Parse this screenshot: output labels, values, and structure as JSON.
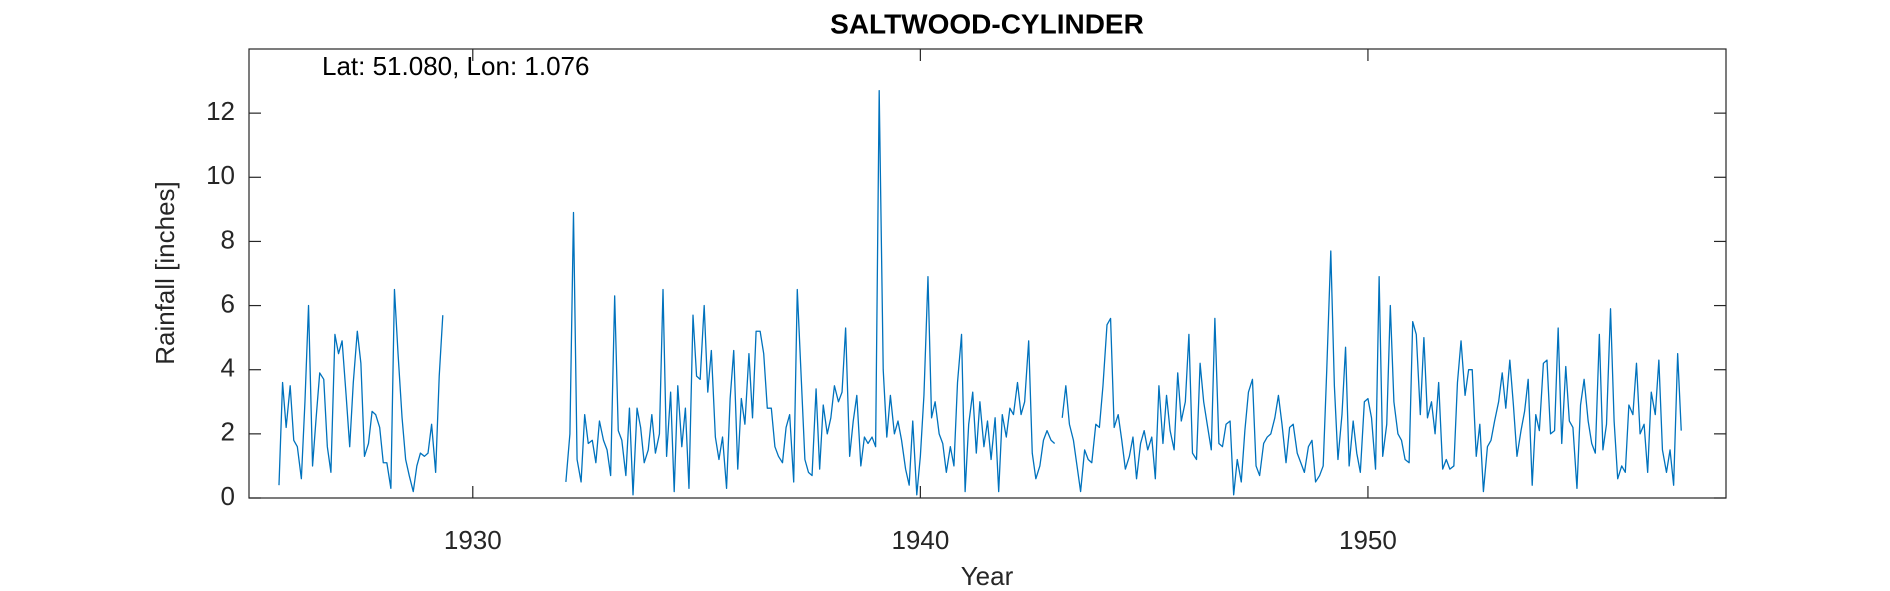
{
  "chart_data": {
    "type": "line",
    "title": "SALTWOOD-CYLINDER",
    "annotation": "Lat: 51.080, Lon: 1.076",
    "xlabel": "Year",
    "ylabel": "Rainfall [inches]",
    "color": "#0072bd",
    "xlim": [
      1925,
      1958
    ],
    "ylim": [
      0,
      14
    ],
    "xticks": [
      1930,
      1940,
      1950
    ],
    "yticks": [
      0,
      2,
      4,
      6,
      8,
      10,
      12
    ],
    "x": [
      1925.67,
      1925.75,
      1925.83,
      1925.92,
      1926.0,
      1926.08,
      1926.17,
      1926.25,
      1926.33,
      1926.42,
      1926.5,
      1926.58,
      1926.67,
      1926.75,
      1926.83,
      1926.92,
      1927.0,
      1927.08,
      1927.17,
      1927.25,
      1927.33,
      1927.42,
      1927.5,
      1927.58,
      1927.67,
      1927.75,
      1927.83,
      1927.92,
      1928.0,
      1928.08,
      1928.17,
      1928.25,
      1928.33,
      1928.42,
      1928.5,
      1928.58,
      1928.67,
      1928.75,
      1928.83,
      1928.92,
      1929.0,
      1929.08,
      1929.17,
      1929.25,
      1929.33,
      1929.42,
      1932.08,
      1932.17,
      1932.25,
      1932.33,
      1932.42,
      1932.5,
      1932.58,
      1932.67,
      1932.75,
      1932.83,
      1932.92,
      1933.0,
      1933.08,
      1933.17,
      1933.25,
      1933.33,
      1933.42,
      1933.5,
      1933.58,
      1933.67,
      1933.75,
      1933.83,
      1933.92,
      1934.0,
      1934.08,
      1934.17,
      1934.25,
      1934.33,
      1934.42,
      1934.5,
      1934.58,
      1934.67,
      1934.75,
      1934.83,
      1934.92,
      1935.0,
      1935.08,
      1935.17,
      1935.25,
      1935.33,
      1935.42,
      1935.5,
      1935.58,
      1935.67,
      1935.75,
      1935.83,
      1935.92,
      1936.0,
      1936.08,
      1936.17,
      1936.25,
      1936.33,
      1936.42,
      1936.5,
      1936.58,
      1936.67,
      1936.75,
      1936.83,
      1936.92,
      1937.0,
      1937.08,
      1937.17,
      1937.25,
      1937.33,
      1937.42,
      1937.5,
      1937.58,
      1937.67,
      1937.75,
      1937.83,
      1937.92,
      1938.0,
      1938.08,
      1938.17,
      1938.25,
      1938.33,
      1938.42,
      1938.5,
      1938.58,
      1938.67,
      1938.75,
      1938.83,
      1938.92,
      1939.0,
      1939.08,
      1939.17,
      1939.25,
      1939.33,
      1939.42,
      1939.5,
      1939.58,
      1939.67,
      1939.75,
      1939.83,
      1939.92,
      1940.0,
      1940.08,
      1940.17,
      1940.25,
      1940.33,
      1940.42,
      1940.5,
      1940.58,
      1940.67,
      1940.75,
      1940.83,
      1940.92,
      1941.0,
      1941.08,
      1941.17,
      1941.25,
      1941.33,
      1941.42,
      1941.5,
      1941.58,
      1941.67,
      1941.75,
      1941.83,
      1941.92,
      1942.0,
      1942.08,
      1942.17,
      1942.25,
      1942.33,
      1942.42,
      1942.5,
      1942.58,
      1942.67,
      1942.75,
      1942.83,
      1942.92,
      1943.0,
      1943.08,
      1943.17,
      1943.25,
      1943.33,
      1943.42,
      1943.5,
      1943.58,
      1943.67,
      1943.75,
      1943.83,
      1943.92,
      1944.0,
      1944.08,
      1944.17,
      1944.25,
      1944.33,
      1944.42,
      1944.5,
      1944.58,
      1944.67,
      1944.75,
      1944.83,
      1944.92,
      1945.0,
      1945.08,
      1945.17,
      1945.25,
      1945.33,
      1945.42,
      1945.5,
      1945.58,
      1945.67,
      1945.75,
      1945.83,
      1945.92,
      1946.0,
      1946.08,
      1946.17,
      1946.25,
      1946.33,
      1946.42,
      1946.5,
      1946.58,
      1946.67,
      1946.75,
      1946.83,
      1946.92,
      1947.0,
      1947.08,
      1947.17,
      1947.25,
      1947.33,
      1947.42,
      1947.5,
      1947.58,
      1947.67,
      1947.75,
      1947.83,
      1947.92,
      1948.0,
      1948.08,
      1948.17,
      1948.25,
      1948.33,
      1948.42,
      1948.5,
      1948.58,
      1948.67,
      1948.75,
      1948.83,
      1948.92,
      1949.0,
      1949.08,
      1949.17,
      1949.25,
      1949.33,
      1949.42,
      1949.5,
      1949.58,
      1949.67,
      1949.75,
      1949.83,
      1949.92,
      1950.0,
      1950.08,
      1950.17,
      1950.25,
      1950.33,
      1950.42,
      1950.5,
      1950.58,
      1950.67,
      1950.75,
      1950.83,
      1950.92,
      1951.0,
      1951.08,
      1951.17,
      1951.25,
      1951.33,
      1951.42,
      1951.5,
      1951.58,
      1951.67,
      1951.75,
      1951.83,
      1951.92,
      1952.0,
      1952.08,
      1952.17,
      1952.25,
      1952.33,
      1952.42,
      1952.5,
      1952.58,
      1952.67,
      1952.75,
      1952.83,
      1952.92,
      1953.0,
      1953.08,
      1953.17,
      1953.25,
      1953.33,
      1953.42,
      1953.5,
      1953.58,
      1953.67,
      1953.75,
      1953.83,
      1953.92,
      1954.0,
      1954.08,
      1954.17,
      1954.25,
      1954.33,
      1954.42,
      1954.5,
      1954.58,
      1954.67,
      1954.75,
      1954.83,
      1954.92,
      1955.0,
      1955.08,
      1955.17,
      1955.25,
      1955.33,
      1955.42,
      1955.5,
      1955.58,
      1955.67,
      1955.75,
      1955.83,
      1955.92,
      1956.0,
      1956.08,
      1956.17,
      1956.25,
      1956.33,
      1956.42,
      1956.5,
      1956.58,
      1956.67,
      1956.75,
      1956.83,
      1956.92,
      1957.0
    ],
    "values": [
      0.4,
      3.6,
      2.2,
      3.5,
      1.8,
      1.6,
      0.6,
      3.0,
      6.0,
      1.0,
      2.5,
      3.9,
      3.7,
      1.6,
      0.8,
      5.1,
      4.5,
      4.9,
      3.2,
      1.6,
      3.6,
      5.2,
      4.2,
      1.3,
      1.7,
      2.7,
      2.6,
      2.2,
      1.1,
      1.1,
      0.3,
      6.5,
      4.5,
      2.5,
      1.2,
      0.7,
      0.2,
      1.0,
      1.4,
      1.3,
      1.4,
      2.3,
      0.8,
      3.8,
      5.7,
      null,
      0.5,
      2.0,
      8.9,
      1.2,
      0.5,
      2.6,
      1.7,
      1.8,
      1.1,
      2.4,
      1.8,
      1.5,
      0.7,
      6.3,
      2.1,
      1.8,
      0.7,
      2.8,
      0.1,
      2.8,
      2.2,
      1.1,
      1.5,
      2.6,
      1.4,
      2.0,
      6.5,
      1.3,
      3.3,
      0.2,
      3.5,
      1.6,
      2.8,
      0.3,
      5.7,
      3.8,
      3.7,
      6.0,
      3.3,
      4.6,
      1.9,
      1.2,
      1.9,
      0.3,
      3.1,
      4.6,
      0.9,
      3.1,
      2.3,
      4.5,
      2.5,
      5.2,
      5.2,
      4.5,
      2.8,
      2.8,
      1.6,
      1.3,
      1.1,
      2.2,
      2.6,
      0.5,
      6.5,
      4.0,
      1.2,
      0.8,
      0.7,
      3.4,
      0.9,
      2.9,
      2.0,
      2.5,
      3.5,
      3.0,
      3.3,
      5.3,
      1.3,
      2.4,
      3.2,
      1.0,
      1.9,
      1.7,
      1.9,
      1.6,
      12.7,
      4.0,
      1.9,
      3.2,
      2.0,
      2.4,
      1.8,
      0.9,
      0.4,
      2.4,
      0.1,
      1.3,
      3.2,
      6.9,
      2.5,
      3.0,
      2.0,
      1.7,
      0.8,
      1.6,
      1.0,
      3.6,
      5.1,
      0.2,
      2.3,
      3.3,
      1.4,
      3.0,
      1.6,
      2.4,
      1.2,
      2.5,
      0.2,
      2.6,
      1.9,
      2.8,
      2.6,
      3.6,
      2.6,
      3.0,
      4.9,
      1.4,
      0.6,
      1.0,
      1.8,
      2.1,
      1.8,
      1.7,
      null,
      2.5,
      3.5,
      2.3,
      1.8,
      1.0,
      0.2,
      1.5,
      1.2,
      1.1,
      2.3,
      2.2,
      3.5,
      5.4,
      5.6,
      2.2,
      2.6,
      1.8,
      0.9,
      1.3,
      1.9,
      0.6,
      1.7,
      2.1,
      1.5,
      1.9,
      0.6,
      3.5,
      1.7,
      3.2,
      2.1,
      1.5,
      3.9,
      2.4,
      3.0,
      5.1,
      1.4,
      1.2,
      4.2,
      3.0,
      2.2,
      1.5,
      5.6,
      1.7,
      1.6,
      2.3,
      2.4,
      0.1,
      1.2,
      0.5,
      2.1,
      3.3,
      3.7,
      1.0,
      0.7,
      1.7,
      1.9,
      2.0,
      2.5,
      3.2,
      2.3,
      1.1,
      2.2,
      2.3,
      1.4,
      1.1,
      0.8,
      1.6,
      1.8,
      0.5,
      0.7,
      1.0,
      4.0,
      7.7,
      3.5,
      1.2,
      2.6,
      4.7,
      1.0,
      2.4,
      1.4,
      0.8,
      3.0,
      3.1,
      2.5,
      0.9,
      6.9,
      1.3,
      2.3,
      6.0,
      3.0,
      2.0,
      1.8,
      1.2,
      1.1,
      5.5,
      5.1,
      2.6,
      5.0,
      2.5,
      3.0,
      2.0,
      3.6,
      0.9,
      1.2,
      0.9,
      1.0,
      3.6,
      4.9,
      3.2,
      4.0,
      4.0,
      1.3,
      2.3,
      0.2,
      1.6,
      1.8,
      2.4,
      3.0,
      3.9,
      2.8,
      4.3,
      2.9,
      1.3,
      2.1,
      2.7,
      3.7,
      0.4,
      2.6,
      2.1,
      4.2,
      4.3,
      2.0,
      2.1,
      5.3,
      1.7,
      4.1,
      2.4,
      2.2,
      0.3,
      2.9,
      3.7,
      2.4,
      1.7,
      1.4,
      5.1,
      1.5,
      2.3,
      5.9,
      2.4,
      0.6,
      1.0,
      0.8,
      2.9,
      2.6,
      4.2,
      2.0,
      2.3,
      0.8,
      3.3,
      2.6,
      4.3,
      1.5,
      0.8,
      1.5,
      0.4,
      4.5,
      2.1
    ]
  }
}
